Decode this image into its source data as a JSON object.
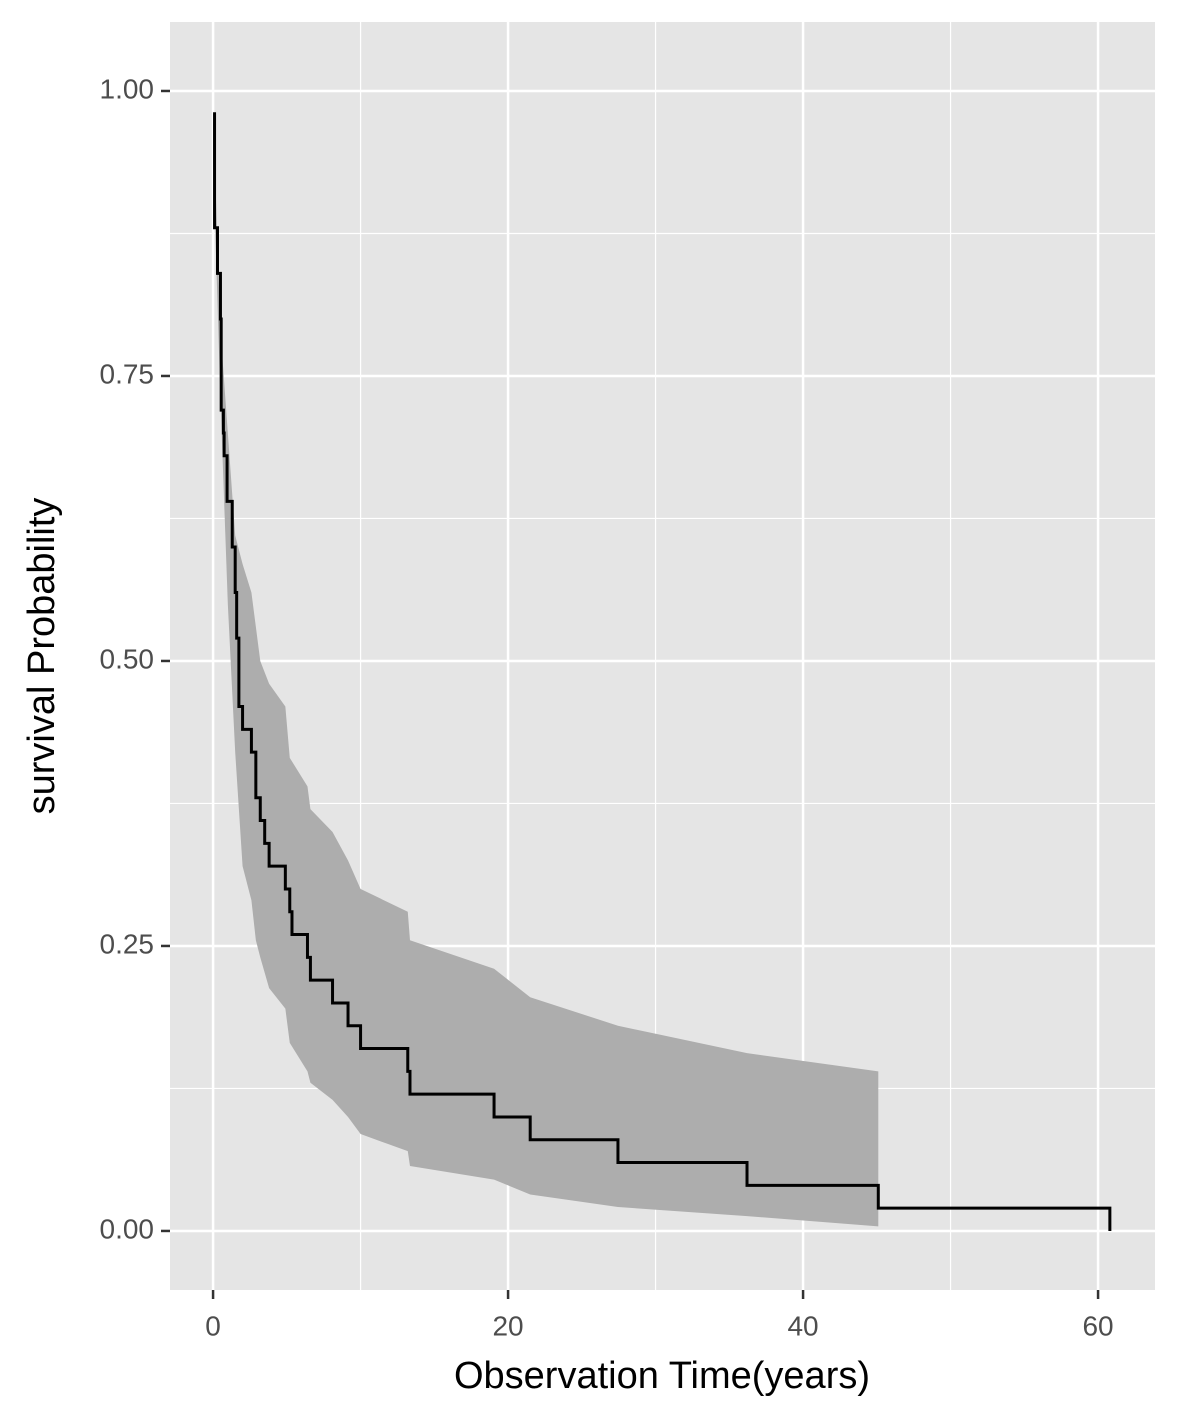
{
  "chart_data": {
    "type": "survival",
    "xlabel": "Observation Time(years)",
    "ylabel": "survival Probability",
    "x": [
      0,
      0.1,
      0.3,
      0.5,
      0.55,
      0.7,
      0.75,
      0.95,
      1.3,
      1.5,
      1.6,
      1.75,
      2.0,
      2.6,
      2.9,
      3.2,
      3.5,
      3.8,
      4.9,
      5.2,
      5.35,
      6.4,
      6.6,
      8.1,
      9.15,
      10.0,
      13.2,
      13.35,
      19.05,
      21.5,
      27.45,
      36.2,
      45.1,
      60.8
    ],
    "values": [
      0.98,
      0.88,
      0.84,
      0.8,
      0.72,
      0.7,
      0.68,
      0.64,
      0.6,
      0.56,
      0.52,
      0.46,
      0.44,
      0.42,
      0.38,
      0.36,
      0.34,
      0.32,
      0.3,
      0.28,
      0.26,
      0.24,
      0.22,
      0.2,
      0.18,
      0.16,
      0.14,
      0.12,
      0.1,
      0.08,
      0.06,
      0.04,
      0.02,
      0.0
    ],
    "color": "#000000",
    "band": {
      "color": "#adadad",
      "x": [
        0,
        0.5,
        1.0,
        1.5,
        2.0,
        2.6,
        2.9,
        3.2,
        3.8,
        4.9,
        5.2,
        6.4,
        6.6,
        8.1,
        9.15,
        10.0,
        13.2,
        13.35,
        19.05,
        21.5,
        27.45,
        36.2,
        45.1
      ],
      "upper": [
        0.98,
        0.79,
        0.7,
        0.61,
        0.585,
        0.56,
        0.53,
        0.5,
        0.48,
        0.46,
        0.415,
        0.39,
        0.37,
        0.35,
        0.325,
        0.3,
        0.28,
        0.255,
        0.23,
        0.205,
        0.18,
        0.156,
        0.14
      ],
      "lower": [
        0.94,
        0.73,
        0.55,
        0.42,
        0.32,
        0.29,
        0.255,
        0.24,
        0.213,
        0.195,
        0.165,
        0.14,
        0.13,
        0.115,
        0.1,
        0.085,
        0.07,
        0.057,
        0.045,
        0.032,
        0.021,
        0.013,
        0.004
      ]
    },
    "xlim": [
      -2.92,
      63.86
    ],
    "ylim": [
      -0.0518,
      1.0605
    ],
    "xticks": [
      0,
      20,
      40,
      60
    ],
    "yticks": [
      {
        "value": 0,
        "label": "0.00"
      },
      {
        "value": 0.25,
        "label": "0.25"
      },
      {
        "value": 0.5,
        "label": "0.50"
      },
      {
        "value": 0.75,
        "label": "0.75"
      },
      {
        "value": 1,
        "label": "1.00"
      }
    ],
    "xminor": [
      10,
      30,
      50
    ],
    "yminor": [
      0.125,
      0.375,
      0.625,
      0.875
    ],
    "grid": true
  }
}
